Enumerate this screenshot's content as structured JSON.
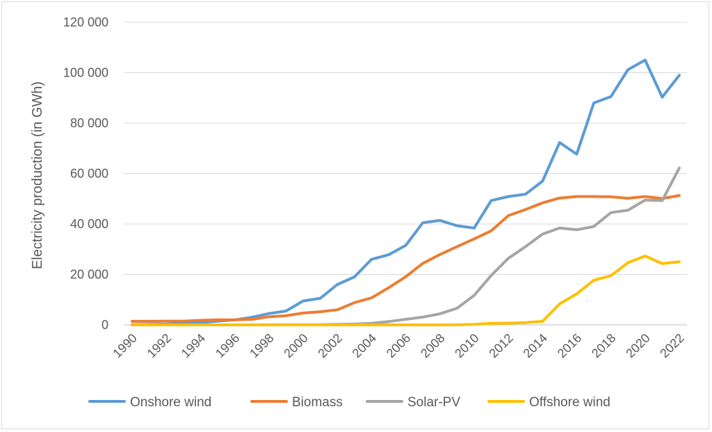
{
  "chart_data": {
    "type": "line",
    "title": "",
    "xlabel": "",
    "ylabel": "Electricity production (in GWh)",
    "ylim": [
      0,
      120000
    ],
    "yticks": [
      0,
      20000,
      40000,
      60000,
      80000,
      100000,
      120000
    ],
    "ytick_labels": [
      "0",
      "20 000",
      "40 000",
      "60 000",
      "80 000",
      "100 000",
      "120 000"
    ],
    "x": [
      1990,
      1991,
      1992,
      1993,
      1994,
      1995,
      1996,
      1997,
      1998,
      1999,
      2000,
      2001,
      2002,
      2003,
      2004,
      2005,
      2006,
      2007,
      2008,
      2009,
      2010,
      2011,
      2012,
      2013,
      2014,
      2015,
      2016,
      2017,
      2018,
      2019,
      2020,
      2021,
      2022
    ],
    "xtick_labels": [
      "1990",
      "1992",
      "1994",
      "1996",
      "1998",
      "2000",
      "2002",
      "2004",
      "2006",
      "2008",
      "2010",
      "2012",
      "2014",
      "2016",
      "2018",
      "2020",
      "2022"
    ],
    "grid": true,
    "legend_position": "bottom",
    "series": [
      {
        "name": "Onshore wind",
        "color": "#5b9bd5",
        "values": [
          100,
          200,
          300,
          600,
          900,
          1500,
          2000,
          3000,
          4500,
          5500,
          9500,
          10500,
          16000,
          19000,
          26000,
          27800,
          31500,
          40500,
          41400,
          39300,
          38400,
          49300,
          50900,
          51800,
          57000,
          72300,
          67700,
          88000,
          90500,
          101200,
          105000,
          90300,
          99000
        ]
      },
      {
        "name": "Biomass",
        "color": "#ed7d31",
        "values": [
          1400,
          1400,
          1500,
          1500,
          1800,
          2000,
          2000,
          2200,
          3200,
          3600,
          4700,
          5200,
          6000,
          8800,
          10700,
          14700,
          19100,
          24400,
          27900,
          31000,
          34100,
          37300,
          43300,
          45700,
          48400,
          50300,
          50900,
          50900,
          50800,
          50200,
          50900,
          50100,
          51300
        ]
      },
      {
        "name": "Solar-PV",
        "color": "#a5a5a5",
        "values": [
          0,
          0,
          0,
          0,
          0,
          0,
          0,
          20,
          40,
          50,
          60,
          80,
          200,
          300,
          600,
          1300,
          2200,
          3100,
          4400,
          6600,
          11700,
          19600,
          26400,
          31000,
          36000,
          38400,
          37700,
          39000,
          44500,
          45500,
          49500,
          49300,
          62200
        ]
      },
      {
        "name": "Offshore wind",
        "color": "#ffc000",
        "values": [
          0,
          0,
          0,
          0,
          0,
          0,
          0,
          0,
          0,
          0,
          0,
          0,
          0,
          0,
          0,
          0,
          0,
          0,
          0,
          40,
          180,
          600,
          700,
          900,
          1400,
          8300,
          12300,
          17700,
          19500,
          24700,
          27300,
          24300,
          25000
        ]
      }
    ]
  }
}
